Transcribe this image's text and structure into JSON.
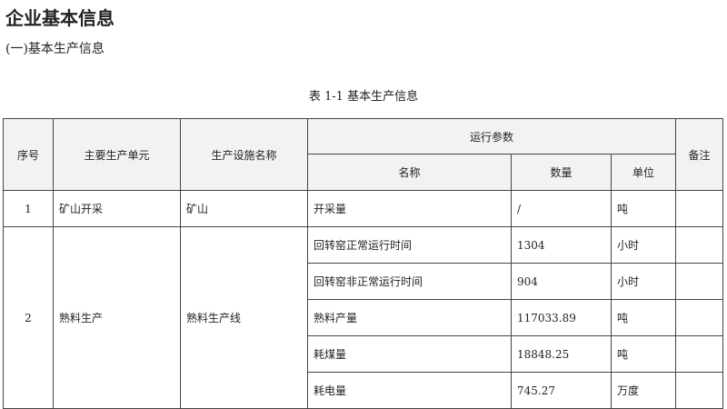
{
  "title": "企业基本信息",
  "section": "(一)基本生产信息",
  "caption": "表 1-1  基本生产信息",
  "headers": {
    "seq": "序号",
    "unit": "主要生产单元",
    "facility": "生产设施名称",
    "params": "运行参数",
    "name": "名称",
    "qty": "数量",
    "measure": "单位",
    "remark": "备注"
  },
  "rows": [
    {
      "seq": "1",
      "unit": "矿山开采",
      "facility": "矿山",
      "params": [
        {
          "name": "开采量",
          "qty": "/",
          "measure": "吨"
        }
      ]
    },
    {
      "seq": "2",
      "unit": "熟料生产",
      "facility": "熟料生产线",
      "params": [
        {
          "name": "回转窑正常运行时间",
          "qty": "1304",
          "measure": "小时"
        },
        {
          "name": "回转窑非正常运行时间",
          "qty": "904",
          "measure": "小时"
        },
        {
          "name": "熟料产量",
          "qty": "117033.89",
          "measure": "吨"
        },
        {
          "name": "耗煤量",
          "qty": "18848.25",
          "measure": "吨"
        },
        {
          "name": "耗电量",
          "qty": "745.27",
          "measure": "万度"
        }
      ]
    }
  ]
}
